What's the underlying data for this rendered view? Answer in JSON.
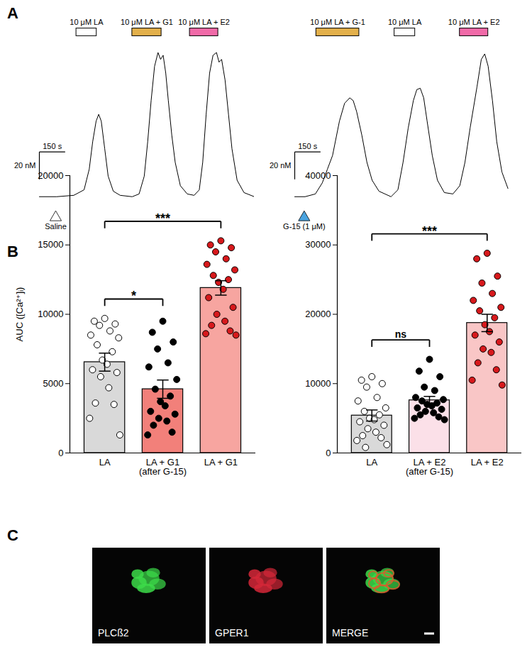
{
  "chart_data": [
    {
      "panel_label": "A",
      "type": "line",
      "color": "#000000",
      "tick_labels": false,
      "xlim": [
        0,
        1250
      ],
      "ylim": [
        -12,
        112
      ],
      "x": [
        0,
        100,
        200,
        260,
        290,
        310,
        330,
        345,
        360,
        380,
        400,
        430,
        470,
        540,
        580,
        610,
        630,
        650,
        670,
        690,
        705,
        720,
        735,
        750,
        770,
        790,
        820,
        860,
        900,
        930,
        950,
        970,
        990,
        1010,
        1030,
        1045,
        1060,
        1080,
        1100,
        1120,
        1150,
        1190,
        1250
      ],
      "values": [
        0,
        0,
        1,
        5,
        20,
        40,
        55,
        60,
        55,
        35,
        15,
        4,
        1,
        0,
        2,
        15,
        40,
        70,
        95,
        105,
        100,
        103,
        90,
        70,
        45,
        25,
        8,
        2,
        1,
        5,
        25,
        60,
        90,
        103,
        105,
        98,
        100,
        85,
        60,
        35,
        12,
        3,
        0
      ],
      "applications": [
        {
          "label": "10 μM LA",
          "start": 215,
          "end": 333,
          "color": "#ffffff"
        },
        {
          "label": "10 μM LA + G1",
          "start": 540,
          "end": 710,
          "color": "#e3b04b"
        },
        {
          "label": "10 μM LA + E2",
          "start": 875,
          "end": 1040,
          "color": "#f06aa8"
        }
      ],
      "markers": [
        {
          "label": "Saline",
          "x": 95,
          "color": "#ffffff"
        }
      ],
      "scalebar": {
        "x": 150,
        "x_label": "150 s",
        "y": 20,
        "y_label": "20 nM"
      }
    },
    {
      "type": "line",
      "color": "#000000",
      "tick_labels": false,
      "xlim": [
        0,
        1250
      ],
      "ylim": [
        -12,
        112
      ],
      "x": [
        0,
        60,
        120,
        160,
        190,
        220,
        260,
        290,
        320,
        340,
        360,
        390,
        420,
        450,
        490,
        560,
        600,
        630,
        660,
        690,
        710,
        730,
        750,
        770,
        800,
        830,
        870,
        920,
        960,
        990,
        1020,
        1060,
        1085,
        1105,
        1125,
        1150,
        1175,
        1205,
        1240
      ],
      "values": [
        0,
        0,
        2,
        10,
        20,
        30,
        55,
        68,
        72,
        70,
        62,
        45,
        25,
        12,
        4,
        0,
        5,
        25,
        50,
        70,
        78,
        79,
        72,
        55,
        30,
        12,
        3,
        2,
        8,
        25,
        50,
        80,
        100,
        104,
        95,
        70,
        40,
        18,
        6
      ],
      "applications": [
        {
          "label": "10 μM LA + G-1",
          "start": 125,
          "end": 375,
          "color": "#e3b04b"
        },
        {
          "label": "10 μM LA",
          "start": 580,
          "end": 700,
          "color": "#ffffff"
        },
        {
          "label": "10 μM LA + E2",
          "start": 960,
          "end": 1125,
          "color": "#f06aa8"
        }
      ],
      "markers": [
        {
          "label": "G-15 (1 μM)",
          "x": 55,
          "color": "#4aa3df"
        }
      ],
      "scalebar": {
        "x": 150,
        "x_label": "150 s",
        "y": 20,
        "y_label": "20 nM"
      }
    },
    {
      "panel_label": "B",
      "type": "bar",
      "y_label": "AUC ([Ca²⁺]ᵢ)",
      "categories": [
        "LA",
        "LA + G1\n(after G-15)",
        "LA + G1"
      ],
      "values": [
        6550,
        4600,
        11900
      ],
      "errors": [
        650,
        660,
        520
      ],
      "colors": [
        "#d9d9d9",
        "#f2807a",
        "#f7a5a0"
      ],
      "point_colors": [
        "#ffffff",
        "#000000",
        "#d7191c"
      ],
      "points": [
        [
          9700,
          9500,
          9300,
          9200,
          8800,
          8500,
          8300,
          7800,
          7300,
          6700,
          6400,
          6000,
          5800,
          5500,
          4700,
          3600,
          3500,
          2500,
          1300
        ],
        [
          9500,
          8700,
          8000,
          7500,
          6500,
          6200,
          5300,
          4600,
          4100,
          3700,
          3400,
          3000,
          2800,
          2500,
          2300,
          2000,
          1500,
          1300
        ],
        [
          15300,
          15000,
          14800,
          14500,
          14000,
          13600,
          13200,
          12800,
          12500,
          12300,
          11800,
          11200,
          10500,
          10000,
          9500,
          9200,
          8800,
          8600,
          8500
        ]
      ],
      "ylim": [
        0,
        20000
      ],
      "yticks": [
        0,
        5000,
        10000,
        15000,
        20000
      ],
      "annotations": [
        {
          "from": 0,
          "to": 1,
          "label": "*"
        },
        {
          "from": 0,
          "to": 2,
          "label": "***"
        }
      ]
    },
    {
      "type": "bar",
      "categories": [
        "LA",
        "LA + E2\n(after G-15)",
        "LA + E2"
      ],
      "values": [
        5400,
        7600,
        18750
      ],
      "errors": [
        800,
        560,
        1250
      ],
      "colors": [
        "#d9d9d9",
        "#fbe0e8",
        "#f9c6c6"
      ],
      "point_colors": [
        "#ffffff",
        "#000000",
        "#d7191c"
      ],
      "points": [
        [
          11000,
          10500,
          10000,
          9500,
          8000,
          7500,
          6500,
          6000,
          5500,
          5000,
          4800,
          4500,
          4000,
          3500,
          3000,
          2500,
          2200,
          1800,
          1200,
          800
        ],
        [
          13500,
          11800,
          11000,
          9500,
          9000,
          8000,
          7700,
          7500,
          7200,
          7000,
          6800,
          6500,
          6300,
          6000,
          5800,
          5500,
          5200,
          5000,
          4800
        ],
        [
          28800,
          28000,
          25500,
          24500,
          23000,
          22000,
          21000,
          20500,
          19500,
          18500,
          17500,
          17000,
          16000,
          15000,
          14500,
          13000,
          12000,
          10500,
          9800
        ]
      ],
      "ylim": [
        0,
        40000
      ],
      "yticks": [
        0,
        10000,
        20000,
        30000,
        40000
      ],
      "annotations": [
        {
          "from": 0,
          "to": 1,
          "label": "ns"
        },
        {
          "from": 0,
          "to": 2,
          "label": "***"
        }
      ]
    }
  ],
  "panel_c": {
    "panel_label": "C",
    "images": [
      {
        "label": "PLCß2",
        "colors": [
          "#3ddc4a"
        ]
      },
      {
        "label": "GPER1",
        "colors": [
          "#d62839"
        ]
      },
      {
        "label": "MERGE",
        "colors": [
          "#3ddc4a",
          "#e0552c"
        ]
      }
    ]
  }
}
